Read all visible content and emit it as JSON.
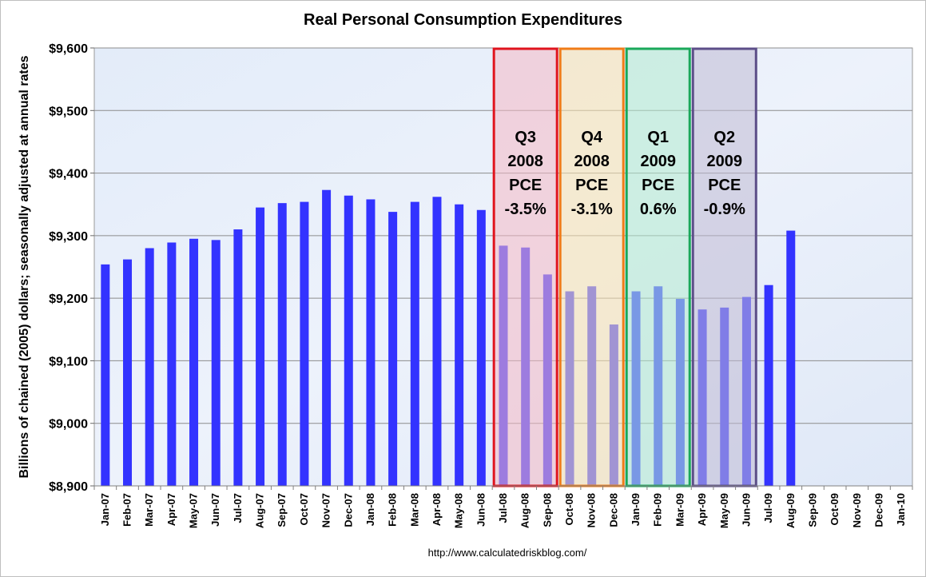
{
  "chart_data": {
    "type": "bar",
    "title": "Real Personal Consumption Expenditures",
    "xlabel": "",
    "ylabel": "Billions of chained (2005) dollars; seasonally adjusted at annual rates",
    "ylim": [
      8900,
      9600
    ],
    "yticks": [
      8900,
      9000,
      9100,
      9200,
      9300,
      9400,
      9500,
      9600
    ],
    "ytick_labels": [
      "$8,900",
      "$9,000",
      "$9,100",
      "$9,200",
      "$9,300",
      "$9,400",
      "$9,500",
      "$9,600"
    ],
    "grid": true,
    "bar_color": "#3333ff",
    "categories": [
      "Jan-07",
      "Feb-07",
      "Mar-07",
      "Apr-07",
      "May-07",
      "Jun-07",
      "Jul-07",
      "Aug-07",
      "Sep-07",
      "Oct-07",
      "Nov-07",
      "Dec-07",
      "Jan-08",
      "Feb-08",
      "Mar-08",
      "Apr-08",
      "May-08",
      "Jun-08",
      "Jul-08",
      "Aug-08",
      "Sep-08",
      "Oct-08",
      "Nov-08",
      "Dec-08",
      "Jan-09",
      "Feb-09",
      "Mar-09",
      "Apr-09",
      "May-09",
      "Jun-09",
      "Jul-09",
      "Aug-09",
      "Sep-09",
      "Oct-09",
      "Nov-09",
      "Dec-09",
      "Jan-10"
    ],
    "values": [
      9254,
      9262,
      9280,
      9289,
      9295,
      9293,
      9310,
      9345,
      9352,
      9354,
      9373,
      9364,
      9358,
      9338,
      9354,
      9362,
      9350,
      9341,
      9284,
      9281,
      9238,
      9211,
      9219,
      9158,
      9211,
      9219,
      9199,
      9182,
      9185,
      9202,
      9221,
      9308,
      null,
      null,
      null,
      null,
      null
    ],
    "annotations": [
      {
        "name": "q3-2008",
        "start": 18,
        "end": 20,
        "lines": [
          "Q3",
          "2008",
          "PCE",
          "-3.5%"
        ],
        "fill": "#f4b8c4",
        "border": "#e0141e"
      },
      {
        "name": "q4-2008",
        "start": 21,
        "end": 23,
        "lines": [
          "Q4",
          "2008",
          "PCE",
          "-3.1%"
        ],
        "fill": "#fbe3ae",
        "border": "#f07c18"
      },
      {
        "name": "q1-2009",
        "start": 24,
        "end": 26,
        "lines": [
          "Q1",
          "2009",
          "PCE",
          "0.6%"
        ],
        "fill": "#b2ebd0",
        "border": "#1aa85a"
      },
      {
        "name": "q2-2009",
        "start": 27,
        "end": 29,
        "lines": [
          "Q2",
          "2009",
          "PCE",
          "-0.9%"
        ],
        "fill": "#c0bad4",
        "border": "#5c4e88"
      }
    ]
  },
  "source": "http://www.calculatedriskblog.com/"
}
